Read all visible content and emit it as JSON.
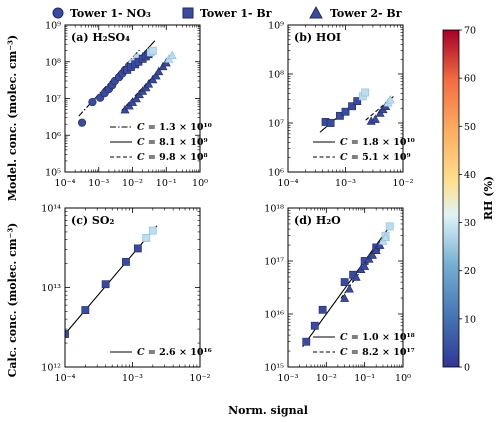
{
  "figure": {
    "legend": [
      {
        "label": "Tower 1- NO₃",
        "marker": "circle"
      },
      {
        "label": "Tower 1- Br",
        "marker": "square"
      },
      {
        "label": "Tower 2- Br",
        "marker": "triangle"
      }
    ],
    "xlabel": "Norm. signal",
    "ylabel_top": "Model. conc. (molec. cm⁻³)",
    "ylabel_bottom": "Calc. conc. (molec. cm⁻³)",
    "colorbar": {
      "label": "RH (%)",
      "min": 0,
      "max": 70,
      "ticks": [
        "0",
        "10",
        "20",
        "30",
        "40",
        "50",
        "60",
        "70"
      ]
    },
    "colors": {
      "marker_fill": "#3a4a9c",
      "marker_edge": "#1f2a6b",
      "high_rh": "#bcdcef"
    }
  },
  "chart_data": [
    {
      "type": "scatter",
      "panel": "(a) H₂SO₄",
      "xscale": "log",
      "yscale": "log",
      "xlim": [
        0.0001,
        1
      ],
      "ylim": [
        100000,
        1000000000
      ],
      "xticks": [
        "10⁻⁴",
        "10⁻³",
        "10⁻²",
        "10⁻¹",
        "10⁰"
      ],
      "yticks": [
        "10⁵",
        "10⁶",
        "10⁷",
        "10⁸",
        "10⁹"
      ],
      "series": [
        {
          "name": "Tower 1- NO₃",
          "marker": "circle",
          "x": [
            0.00032,
            0.00065,
            0.0011,
            0.0015,
            0.002,
            0.0025,
            0.003,
            0.004,
            0.005,
            0.006,
            0.008,
            0.01,
            0.014
          ],
          "y": [
            2200000,
            8000000,
            10500000,
            14000000,
            18000000,
            23000000,
            30000000,
            38000000,
            48000000,
            60000000,
            78000000,
            95000000,
            130000000
          ]
        },
        {
          "name": "Tower 1- Br",
          "marker": "square",
          "x": [
            0.007,
            0.009,
            0.012,
            0.015,
            0.02,
            0.025,
            0.03,
            0.035,
            0.04
          ],
          "y": [
            60000000,
            72000000,
            85000000,
            100000000,
            120000000,
            140000000,
            160000000,
            180000000,
            200000000
          ]
        },
        {
          "name": "Tower 2- Br",
          "marker": "triangle",
          "x": [
            0.006,
            0.008,
            0.01,
            0.013,
            0.016,
            0.02,
            0.025,
            0.03,
            0.04,
            0.05,
            0.06,
            0.08,
            0.1,
            0.12,
            0.15
          ],
          "y": [
            5000000,
            6400000,
            8000000,
            10000000,
            13000000,
            16000000,
            20000000,
            25000000,
            33000000,
            42000000,
            55000000,
            75000000,
            95000000,
            120000000,
            150000000
          ]
        }
      ],
      "fits": [
        {
          "C": 13000000000,
          "label": "1.3 × 10¹⁰",
          "style": "dashdot"
        },
        {
          "C": 8100000000,
          "label": "8.1 × 10⁹",
          "style": "solid"
        },
        {
          "C": 980000000,
          "label": "9.8 × 10⁸",
          "style": "dashed"
        }
      ]
    },
    {
      "type": "scatter",
      "panel": "(b) HOI",
      "xscale": "log",
      "yscale": "log",
      "xlim": [
        0.0001,
        0.01
      ],
      "ylim": [
        1000000,
        1000000000
      ],
      "xticks": [
        "10⁻⁴",
        "10⁻³",
        "10⁻²"
      ],
      "yticks": [
        "10⁶",
        "10⁷",
        "10⁸",
        "10⁹"
      ],
      "series": [
        {
          "name": "Tower 1- Br",
          "marker": "square",
          "x": [
            0.00045,
            0.00055,
            0.0008,
            0.001,
            0.0013,
            0.0016,
            0.002,
            0.0022
          ],
          "y": [
            10500000,
            10000000,
            14000000,
            17000000,
            22000000,
            28000000,
            35000000,
            42000000
          ]
        },
        {
          "name": "Tower 2- Br",
          "marker": "triangle",
          "x": [
            0.0028,
            0.0033,
            0.004,
            0.0045,
            0.005,
            0.0055,
            0.006
          ],
          "y": [
            11000000,
            12000000,
            16000000,
            19000000,
            22000000,
            26000000,
            30000000
          ]
        }
      ],
      "fits": [
        {
          "C": 18000000000,
          "label": "1.8 × 10¹⁰",
          "style": "solid"
        },
        {
          "C": 5100000000,
          "label": "5.1 × 10⁹",
          "style": "dashed"
        }
      ]
    },
    {
      "type": "scatter",
      "panel": "(c) SO₂",
      "xscale": "log",
      "yscale": "log",
      "xlim": [
        0.0001,
        0.01
      ],
      "ylim": [
        1000000000000,
        100000000000000
      ],
      "xticks": [
        "10⁻⁴",
        "10⁻³",
        "10⁻²"
      ],
      "yticks": [
        "10¹²",
        "10¹³",
        "10¹⁴"
      ],
      "series": [
        {
          "name": "Tower 1- Br",
          "marker": "square",
          "x": [
            0.0001,
            0.0002,
            0.0004,
            0.0008,
            0.0012,
            0.0016,
            0.002
          ],
          "y": [
            2600000000000,
            5200000000000,
            11000000000000,
            21000000000000,
            31000000000000,
            42000000000000,
            52000000000000
          ]
        }
      ],
      "fits": [
        {
          "C": 26000000000000000,
          "label": "2.6 × 10¹⁶",
          "style": "solid"
        }
      ]
    },
    {
      "type": "scatter",
      "panel": "(d) H₂O",
      "xscale": "log",
      "yscale": "log",
      "xlim": [
        0.001,
        1
      ],
      "ylim": [
        1000000000000000,
        1000000000000000000
      ],
      "xticks": [
        "10⁻³",
        "10⁻²",
        "10⁻¹",
        "10⁰"
      ],
      "yticks": [
        "10¹⁵",
        "10¹⁶",
        "10¹⁷",
        "10¹⁸"
      ],
      "series": [
        {
          "name": "Tower 1- Br",
          "marker": "square",
          "x": [
            0.003,
            0.005,
            0.008,
            0.03,
            0.05,
            0.1,
            0.2,
            0.35,
            0.45
          ],
          "y": [
            3000000000000000,
            6000000000000000,
            12000000000000000,
            40000000000000000,
            55000000000000000,
            100000000000000000,
            180000000000000000,
            300000000000000000,
            450000000000000000
          ]
        },
        {
          "name": "Tower 2- Br",
          "marker": "triangle",
          "x": [
            0.03,
            0.04,
            0.06,
            0.08,
            0.1,
            0.13,
            0.16,
            0.2,
            0.25,
            0.3,
            0.35
          ],
          "y": [
            20000000000000000,
            30000000000000000,
            50000000000000000,
            70000000000000000,
            80000000000000000,
            110000000000000000,
            130000000000000000,
            160000000000000000,
            200000000000000000,
            240000000000000000,
            280000000000000000
          ]
        }
      ],
      "fits": [
        {
          "C": 1000000000000000000,
          "label": "1.0 × 10¹⁸",
          "style": "solid"
        },
        {
          "C": 820000000000000000,
          "label": "8.2 × 10¹⁷",
          "style": "dashed"
        }
      ]
    }
  ]
}
